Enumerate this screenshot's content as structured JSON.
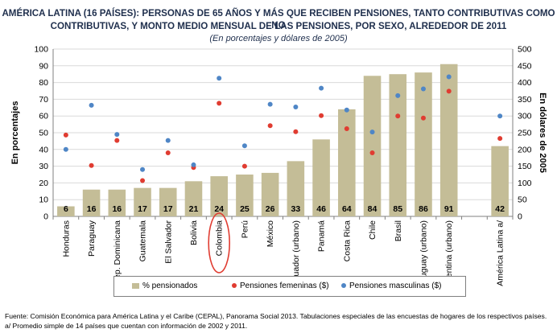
{
  "title_line1": "AMÉRICA LATINA (16 PAÍSES): PERSONAS DE 65 AÑOS Y MÁS QUE RECIBEN PENSIONES, TANTO CONTRIBUTIVAS COMO NO",
  "title_line2": "CONTRIBUTIVAS, Y MONTO MEDIO MENSUAL DE LAS PENSIONES, POR SEXO, ALREDEDOR DE 2011",
  "subtitle": "(En porcentajes y dólares de 2005)",
  "footnote_source": "Fuente: Comisión Económica para América Latina y el Caribe (CEPAL), Panorama Social 2013. Tabulaciones especiales de las encuestas de hogares de los respectivos países.",
  "footnote_a": "a/ Promedio simple de 14 países que cuentan con información de 2002 y 2011.",
  "colors": {
    "bar": "#c4bd97",
    "female": "#e03c31",
    "male": "#4f86c6",
    "highlight": "#e03c31"
  },
  "chart_data": {
    "type": "bar",
    "categories": [
      "Honduras",
      "Paraguay",
      "Rep. Dominicana",
      "Guatemala",
      "El Salvador",
      "Bolivia",
      "Colombia",
      "Perú",
      "México",
      "Ecuador (urbano)",
      "Panamá",
      "Costa Rica",
      "Chile",
      "Brasil",
      "Uruguay (urbano)",
      "Argentina (urbano)",
      "",
      "América Latina a/"
    ],
    "ylabel": "En porcentajes",
    "y2label": "En dólares de 2005",
    "ylim": [
      0,
      100
    ],
    "y2lim": [
      0,
      500
    ],
    "yticks": [
      0,
      10,
      20,
      30,
      40,
      50,
      60,
      70,
      80,
      90,
      100
    ],
    "y2ticks": [
      0,
      50,
      100,
      150,
      200,
      250,
      300,
      350,
      400,
      450,
      500
    ],
    "highlighted_category": "Colombia",
    "legend_position": "bottom",
    "series": [
      {
        "name": "% pensionados",
        "type": "bar",
        "axis": "left",
        "values": [
          6,
          16,
          16,
          17,
          17,
          21,
          24,
          25,
          26,
          33,
          46,
          64,
          84,
          85,
          86,
          91,
          null,
          42
        ],
        "labels": [
          "6",
          "16",
          "16",
          "17",
          "17",
          "21",
          "24",
          "25",
          "26",
          "33",
          "46",
          "64",
          "84",
          "85",
          "86",
          "91",
          "",
          "42"
        ]
      },
      {
        "name": "Pensiones femeninas ($)",
        "type": "scatter",
        "axis": "right",
        "values": [
          243,
          152,
          227,
          107,
          190,
          146,
          338,
          150,
          271,
          253,
          301,
          262,
          190,
          300,
          294,
          374,
          null,
          233
        ]
      },
      {
        "name": "Pensiones masculinas ($)",
        "type": "scatter",
        "axis": "right",
        "values": [
          200,
          332,
          245,
          140,
          227,
          154,
          413,
          211,
          335,
          327,
          383,
          318,
          252,
          361,
          381,
          417,
          null,
          300
        ]
      }
    ]
  }
}
